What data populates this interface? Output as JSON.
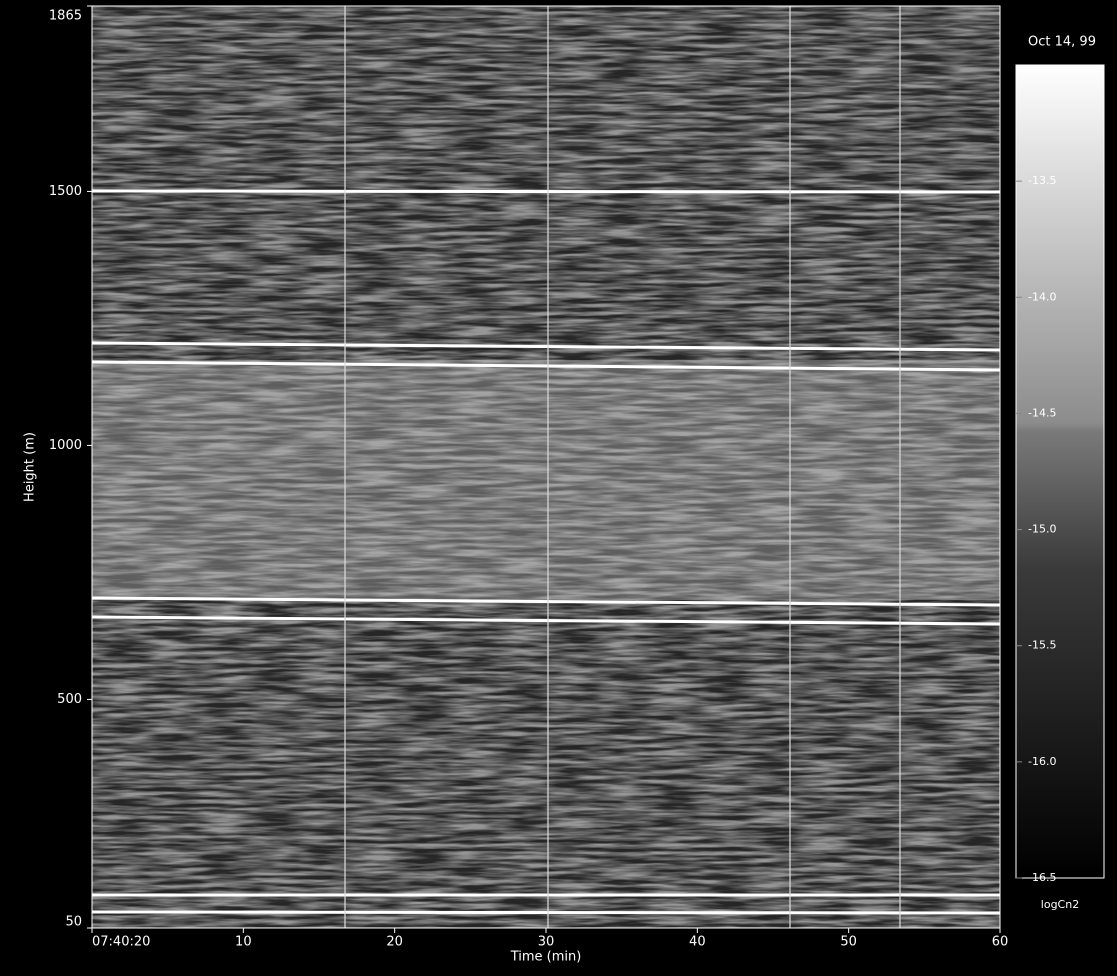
{
  "chart_data": {
    "type": "heatmap",
    "title": "Oct 14, 99",
    "xlabel": "Time (min)",
    "ylabel": "Height (m)",
    "colorbar_label": "logCn2",
    "xlim": [
      0,
      60
    ],
    "xticks": [
      {
        "value": 0,
        "label": "07:40:20"
      },
      10,
      20,
      30,
      40,
      50,
      60
    ],
    "ylim": [
      50,
      1865
    ],
    "yticks": [
      50,
      500,
      1000,
      1500,
      1865
    ],
    "clim": [
      -16.5,
      -13.0
    ],
    "cticks": [
      -13.5,
      {
        "value": -14.0,
        "label": "-14.0"
      },
      -14.5,
      {
        "value": -15.0,
        "label": "-15.0"
      },
      -15.5,
      {
        "value": -16.0,
        "label": "-16.0"
      },
      -16.5
    ],
    "colormap": [
      "#000000",
      "#3a3a3a",
      "#7a7a7a",
      "#8c8c8c",
      "#ffffff"
    ]
  }
}
